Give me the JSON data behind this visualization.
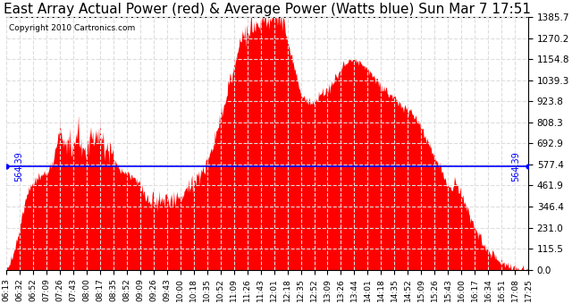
{
  "title": "East Array Actual Power (red) & Average Power (Watts blue) Sun Mar 7 17:51",
  "copyright": "Copyright 2010 Cartronics.com",
  "average_power": 564.39,
  "yticks": [
    0.0,
    115.5,
    231.0,
    346.4,
    461.9,
    577.4,
    692.9,
    808.3,
    923.8,
    1039.3,
    1154.8,
    1270.2,
    1385.7
  ],
  "xtick_labels": [
    "06:13",
    "06:32",
    "06:52",
    "07:09",
    "07:26",
    "07:43",
    "08:00",
    "08:17",
    "08:35",
    "08:52",
    "09:09",
    "09:26",
    "09:43",
    "10:00",
    "10:18",
    "10:35",
    "10:52",
    "11:09",
    "11:26",
    "11:43",
    "12:01",
    "12:18",
    "12:35",
    "12:52",
    "13:09",
    "13:26",
    "13:44",
    "14:01",
    "14:18",
    "14:35",
    "14:52",
    "15:09",
    "15:26",
    "15:43",
    "16:00",
    "16:17",
    "16:34",
    "16:51",
    "17:08",
    "17:25"
  ],
  "fill_color": "#ff0000",
  "line_color": "#0000ff",
  "background_color": "#ffffff",
  "grid_color": "#aaaaaa",
  "title_fontsize": 11,
  "copyright_fontsize": 6.5,
  "ylabel_fontsize": 7.5,
  "xlabel_fontsize": 6.5,
  "avg_label_fontsize": 7
}
